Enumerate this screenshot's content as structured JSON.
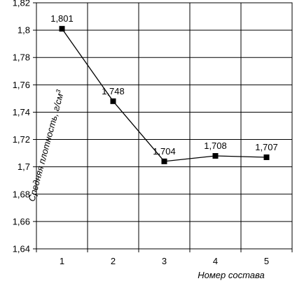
{
  "chart_data": {
    "type": "line",
    "x": [
      1,
      2,
      3,
      4,
      5
    ],
    "categories": [
      "1",
      "2",
      "3",
      "4",
      "5"
    ],
    "series": [
      {
        "values": [
          1.801,
          1.748,
          1.704,
          1.708,
          1.707
        ]
      }
    ],
    "data_labels": [
      "1,801",
      "1,748",
      "1,704",
      "1,708",
      "1,707"
    ],
    "ylim": [
      1.64,
      1.82
    ],
    "yticks": [
      1.64,
      1.66,
      1.68,
      1.7,
      1.72,
      1.74,
      1.76,
      1.78,
      1.8,
      1.82
    ],
    "ytick_labels": [
      "1,64",
      "1,66",
      "1,68",
      "1,7",
      "1,72",
      "1,74",
      "1,76",
      "1,78",
      "1,8",
      "1,82"
    ],
    "xlabel": "Номер состава",
    "ylabel_text": "Средняя плотность, г/см",
    "ylabel_sup": "3",
    "grid": true,
    "legend": false
  }
}
